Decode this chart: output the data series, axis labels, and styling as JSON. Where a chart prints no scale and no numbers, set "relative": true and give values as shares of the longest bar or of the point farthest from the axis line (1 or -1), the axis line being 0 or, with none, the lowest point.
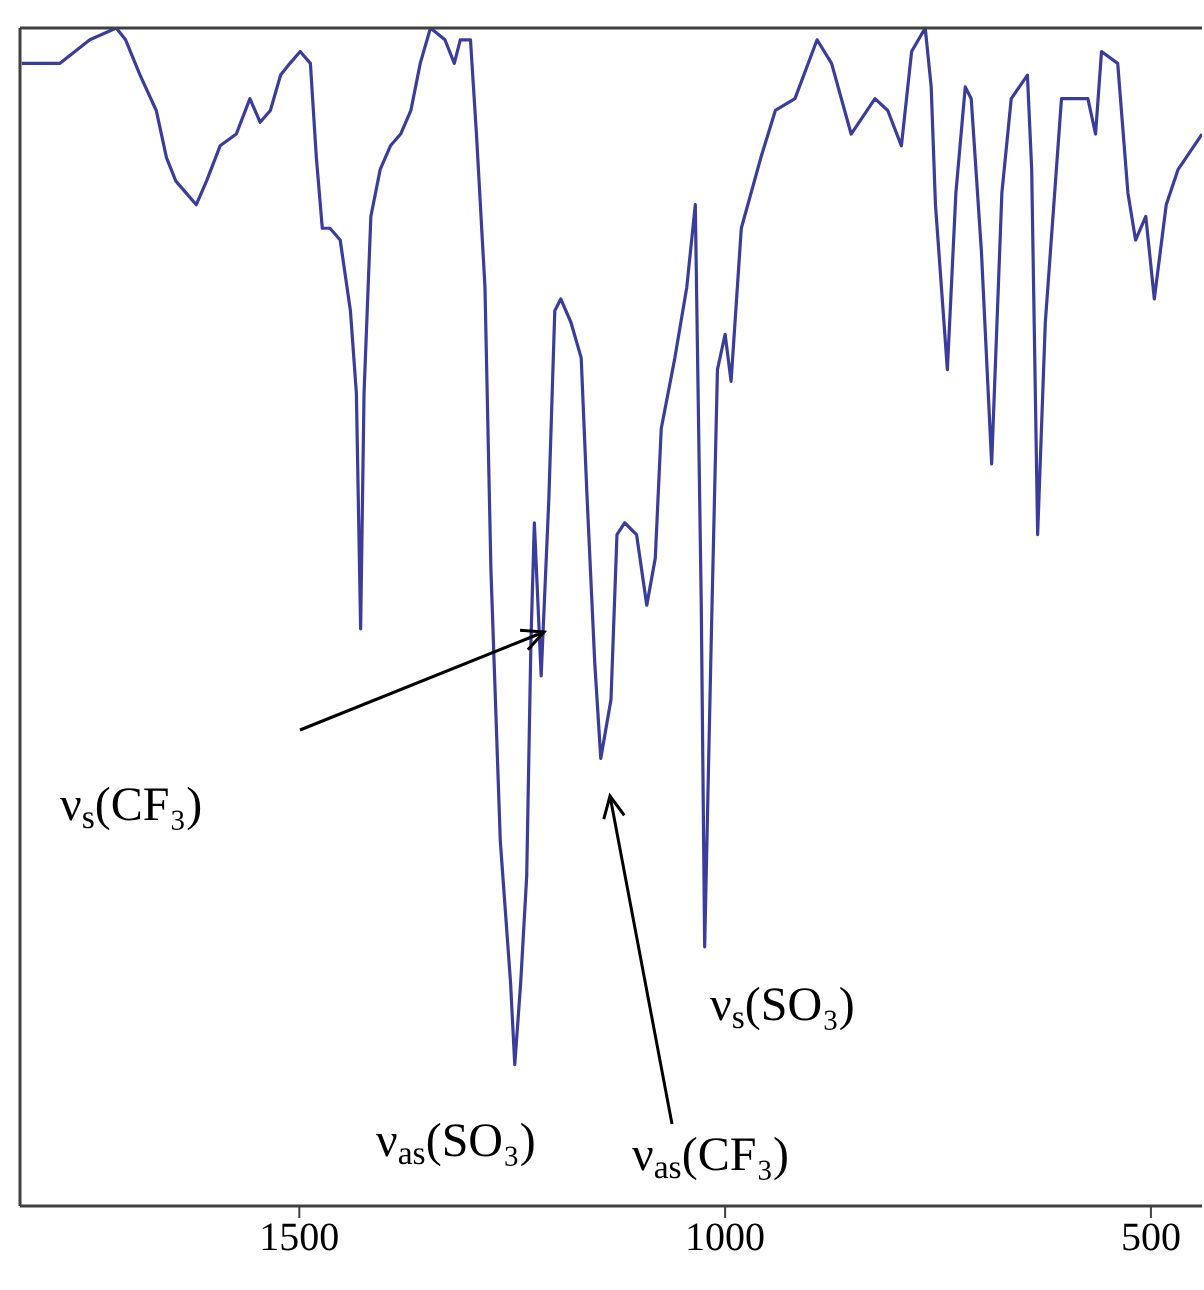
{
  "chart_data": {
    "type": "line",
    "relative": true,
    "xlim": [
      1828,
      440
    ],
    "xticks": [
      1500,
      1000,
      500
    ],
    "marker": "none",
    "line_style": "solid",
    "tick_labels": "x",
    "series": [
      {
        "color": "#3a3d9c",
        "x": [
          1826,
          1781,
          1746,
          1715,
          1704,
          1687,
          1668,
          1656,
          1645,
          1633,
          1621,
          1609,
          1593,
          1574,
          1558,
          1546,
          1534,
          1522,
          1511,
          1499,
          1487,
          1480,
          1473,
          1464,
          1452,
          1440,
          1433,
          1428,
          1424,
          1416,
          1405,
          1393,
          1381,
          1369,
          1358,
          1346,
          1329,
          1318,
          1311,
          1299,
          1292,
          1282,
          1275,
          1264,
          1252,
          1247,
          1240,
          1233,
          1228,
          1224,
          1216,
          1207,
          1200,
          1193,
          1181,
          1169,
          1162,
          1153,
          1146,
          1134,
          1127,
          1118,
          1104,
          1092,
          1082,
          1075,
          1059,
          1045,
          1035,
          1028,
          1024,
          1016,
          1009,
          1000,
          993,
          981,
          958,
          941,
          918,
          892,
          875,
          852,
          824,
          809,
          793,
          781,
          765,
          758,
          753,
          739,
          729,
          718,
          711,
          699,
          687,
          675,
          664,
          645,
          640,
          633,
          624,
          605,
          574,
          565,
          558,
          539,
          527,
          518,
          506,
          496,
          482,
          468,
          440
        ],
        "values": [
          0.97,
          0.97,
          0.99,
          1.0,
          0.99,
          0.96,
          0.93,
          0.89,
          0.87,
          0.86,
          0.85,
          0.87,
          0.9,
          0.91,
          0.94,
          0.92,
          0.93,
          0.96,
          0.97,
          0.98,
          0.97,
          0.89,
          0.83,
          0.83,
          0.82,
          0.76,
          0.69,
          0.49,
          0.69,
          0.84,
          0.88,
          0.9,
          0.91,
          0.93,
          0.97,
          1.0,
          0.99,
          0.97,
          0.99,
          0.99,
          0.91,
          0.78,
          0.54,
          0.31,
          0.19,
          0.12,
          0.19,
          0.28,
          0.48,
          0.58,
          0.45,
          0.6,
          0.76,
          0.77,
          0.75,
          0.72,
          0.6,
          0.46,
          0.38,
          0.43,
          0.57,
          0.58,
          0.57,
          0.51,
          0.55,
          0.66,
          0.72,
          0.78,
          0.85,
          0.51,
          0.22,
          0.49,
          0.71,
          0.74,
          0.7,
          0.83,
          0.89,
          0.93,
          0.94,
          0.99,
          0.97,
          0.91,
          0.94,
          0.93,
          0.9,
          0.98,
          1.0,
          0.95,
          0.85,
          0.71,
          0.86,
          0.95,
          0.94,
          0.81,
          0.63,
          0.86,
          0.94,
          0.96,
          0.88,
          0.57,
          0.75,
          0.94,
          0.94,
          0.91,
          0.98,
          0.97,
          0.86,
          0.82,
          0.84,
          0.77,
          0.85,
          0.88,
          0.91
        ]
      }
    ],
    "annotations": [
      "ν$_{s}$(CF₃)",
      "ν$_{s}$(SO₃)",
      "ν$_{as}$(SO₃)",
      "ν$_{as}$(CF₃)"
    ]
  }
}
